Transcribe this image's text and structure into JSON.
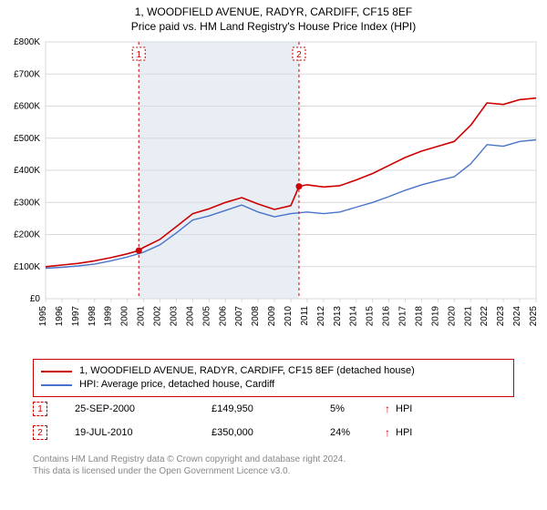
{
  "title_line1": "1, WOODFIELD AVENUE, RADYR, CARDIFF, CF15 8EF",
  "title_line2": "Price paid vs. HM Land Registry's House Price Index (HPI)",
  "chart": {
    "type": "line",
    "background_color": "#ffffff",
    "plot_border_color": "#d9d9d9",
    "grid_color": "#d9d9d9",
    "shade_color": "#e9eef5",
    "axis_text_color": "#000000",
    "tick_fontsize": 10,
    "ylabel_prefix": "£",
    "ylim": [
      0,
      800
    ],
    "ytick_step": 100,
    "yticks": [
      "£0",
      "£100K",
      "£200K",
      "£300K",
      "£400K",
      "£500K",
      "£600K",
      "£700K",
      "£800K"
    ],
    "xlim": [
      1995,
      2025
    ],
    "xticks": [
      1995,
      1996,
      1997,
      1998,
      1999,
      2000,
      2001,
      2002,
      2003,
      2004,
      2005,
      2006,
      2007,
      2008,
      2009,
      2010,
      2011,
      2012,
      2013,
      2014,
      2015,
      2016,
      2017,
      2018,
      2019,
      2020,
      2021,
      2022,
      2023,
      2024,
      2025
    ],
    "series": [
      {
        "name": "property",
        "color": "#cc0000",
        "width": 1.6,
        "years": [
          1995,
          1996,
          1997,
          1998,
          1999,
          2000,
          2000.7,
          2001,
          2002,
          2003,
          2004,
          2005,
          2006,
          2007,
          2008,
          2009,
          2010,
          2010.5,
          2011,
          2012,
          2013,
          2014,
          2015,
          2016,
          2017,
          2018,
          2019,
          2020,
          2021,
          2022,
          2023,
          2024,
          2025
        ],
        "values": [
          100,
          105,
          110,
          118,
          128,
          140,
          150,
          160,
          185,
          225,
          265,
          280,
          300,
          315,
          295,
          278,
          290,
          350,
          355,
          348,
          352,
          370,
          390,
          415,
          440,
          460,
          475,
          490,
          540,
          610,
          605,
          620,
          625
        ]
      },
      {
        "name": "hpi",
        "color": "#4a74c9",
        "width": 1.4,
        "years": [
          1995,
          1996,
          1997,
          1998,
          1999,
          2000,
          2001,
          2002,
          2003,
          2004,
          2005,
          2006,
          2007,
          2008,
          2009,
          2010,
          2011,
          2012,
          2013,
          2014,
          2015,
          2016,
          2017,
          2018,
          2019,
          2020,
          2021,
          2022,
          2023,
          2024,
          2025
        ],
        "values": [
          95,
          98,
          102,
          108,
          118,
          130,
          145,
          168,
          205,
          245,
          258,
          275,
          292,
          270,
          255,
          265,
          270,
          265,
          270,
          285,
          300,
          318,
          338,
          355,
          368,
          380,
          420,
          480,
          475,
          490,
          495
        ]
      }
    ],
    "markers": [
      {
        "n": "1",
        "year": 2000.7,
        "value": 150
      },
      {
        "n": "2",
        "year": 2010.5,
        "value": 350
      }
    ],
    "marker_stroke": "#cc0000",
    "marker_label_box": "#cc0000",
    "marker_dot_fill": "#cc0000"
  },
  "legend": {
    "border_color": "#cc0000",
    "items": [
      {
        "color": "#cc0000",
        "label": "1, WOODFIELD AVENUE, RADYR, CARDIFF, CF15 8EF (detached house)"
      },
      {
        "color": "#4a74c9",
        "label": "HPI: Average price, detached house, Cardiff"
      }
    ]
  },
  "sales": [
    {
      "n": "1",
      "date": "25-SEP-2000",
      "price": "£149,950",
      "pct": "5%",
      "arrow": "↑",
      "label": "HPI"
    },
    {
      "n": "2",
      "date": "19-JUL-2010",
      "price": "£350,000",
      "pct": "24%",
      "arrow": "↑",
      "label": "HPI"
    }
  ],
  "footer_line1": "Contains HM Land Registry data © Crown copyright and database right 2024.",
  "footer_line2": "This data is licensed under the Open Government Licence v3.0."
}
